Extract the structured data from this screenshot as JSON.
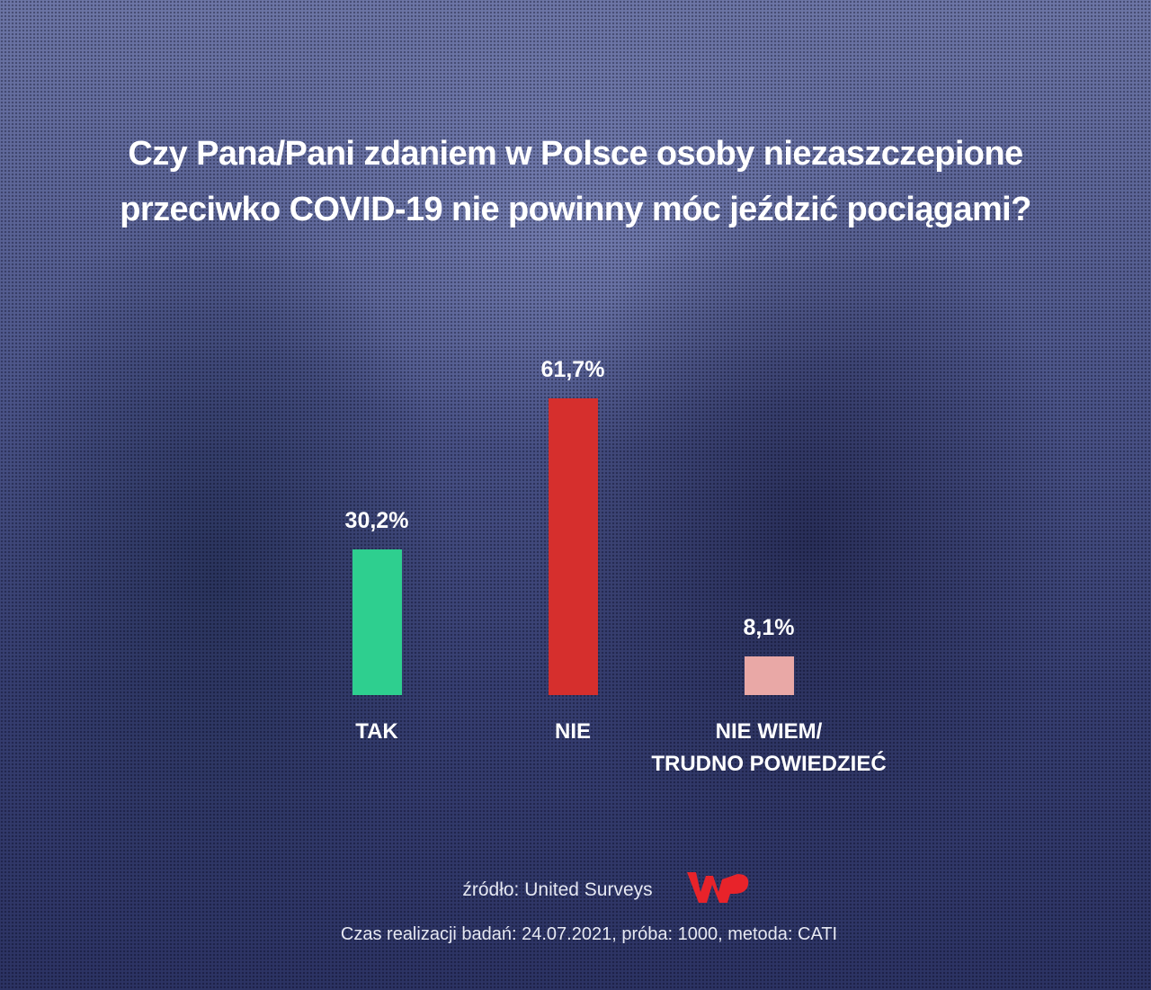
{
  "chart_data": {
    "type": "bar",
    "title": "Czy Pana/Pani zdaniem w Polsce osoby niezaszczepione\nprzeciwko COVID-19 nie powinny móc jeździć pociągami?",
    "categories": [
      "TAK",
      "NIE",
      "NIE WIEM/\nTRUDNO POWIEDZIEĆ"
    ],
    "values": [
      30.2,
      61.7,
      8.1
    ],
    "value_labels": [
      "30,2%",
      "61,7%",
      "8,1%"
    ],
    "colors": [
      "#2ecf8f",
      "#d62f2d",
      "#e9a8a6"
    ],
    "source": "źródło: United Surveys",
    "note": "Czas realizacji badań: 24.07.2021, próba: 1000, metoda: CATI"
  }
}
